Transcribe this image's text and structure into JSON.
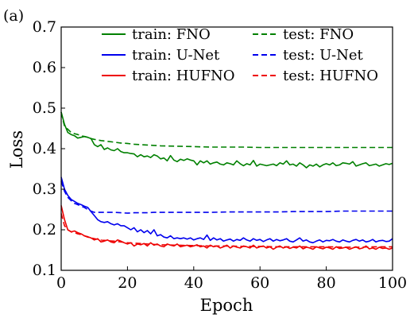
{
  "panel_label": "(a)",
  "chart_data": {
    "type": "line",
    "title": "",
    "xlabel": "Epoch",
    "ylabel": "Loss",
    "xlim": [
      0,
      100
    ],
    "ylim": [
      0.1,
      0.7
    ],
    "xticks": [
      0,
      20,
      40,
      60,
      80,
      100
    ],
    "yticks": [
      0.1,
      0.2,
      0.3,
      0.4,
      0.5,
      0.6,
      0.7
    ],
    "grid": false,
    "legend_position": "top",
    "legend_columns": 2,
    "series": [
      {
        "name": "train: FNO",
        "color": "#008000",
        "dash": "solid",
        "x": [
          0,
          1,
          2,
          3,
          4,
          5,
          6,
          7,
          8,
          9,
          10,
          11,
          12,
          13,
          14,
          15,
          16,
          17,
          18,
          19,
          20,
          21,
          22,
          23,
          24,
          25,
          26,
          27,
          28,
          29,
          30,
          31,
          32,
          33,
          34,
          35,
          36,
          37,
          38,
          39,
          40,
          41,
          42,
          43,
          44,
          45,
          46,
          47,
          48,
          49,
          50,
          51,
          52,
          53,
          54,
          55,
          56,
          57,
          58,
          59,
          60,
          61,
          62,
          63,
          64,
          65,
          66,
          67,
          68,
          69,
          70,
          71,
          72,
          73,
          74,
          75,
          76,
          77,
          78,
          79,
          80,
          81,
          82,
          83,
          84,
          85,
          86,
          87,
          88,
          89,
          90,
          91,
          92,
          93,
          94,
          95,
          96,
          97,
          98,
          99,
          100
        ],
        "values": [
          0.49,
          0.46,
          0.44,
          0.435,
          0.432,
          0.426,
          0.428,
          0.43,
          0.428,
          0.425,
          0.41,
          0.405,
          0.41,
          0.398,
          0.402,
          0.397,
          0.395,
          0.4,
          0.393,
          0.39,
          0.39,
          0.388,
          0.387,
          0.38,
          0.385,
          0.38,
          0.382,
          0.378,
          0.385,
          0.382,
          0.375,
          0.377,
          0.37,
          0.383,
          0.372,
          0.368,
          0.374,
          0.371,
          0.375,
          0.372,
          0.37,
          0.36,
          0.37,
          0.365,
          0.37,
          0.362,
          0.365,
          0.367,
          0.362,
          0.36,
          0.365,
          0.363,
          0.36,
          0.37,
          0.363,
          0.358,
          0.363,
          0.36,
          0.371,
          0.357,
          0.362,
          0.36,
          0.358,
          0.36,
          0.362,
          0.358,
          0.365,
          0.362,
          0.37,
          0.36,
          0.362,
          0.357,
          0.365,
          0.36,
          0.353,
          0.36,
          0.357,
          0.362,
          0.355,
          0.36,
          0.363,
          0.36,
          0.365,
          0.358,
          0.36,
          0.365,
          0.364,
          0.362,
          0.368,
          0.357,
          0.36,
          0.363,
          0.365,
          0.358,
          0.36,
          0.362,
          0.357,
          0.36,
          0.363,
          0.361,
          0.364
        ]
      },
      {
        "name": "train: U-Net",
        "color": "#0000ee",
        "dash": "solid",
        "x": [
          0,
          1,
          2,
          3,
          4,
          5,
          6,
          7,
          8,
          9,
          10,
          11,
          12,
          13,
          14,
          15,
          16,
          17,
          18,
          19,
          20,
          21,
          22,
          23,
          24,
          25,
          26,
          27,
          28,
          29,
          30,
          31,
          32,
          33,
          34,
          35,
          36,
          37,
          38,
          39,
          40,
          41,
          42,
          43,
          44,
          45,
          46,
          47,
          48,
          49,
          50,
          51,
          52,
          53,
          54,
          55,
          56,
          57,
          58,
          59,
          60,
          61,
          62,
          63,
          64,
          65,
          66,
          67,
          68,
          69,
          70,
          71,
          72,
          73,
          74,
          75,
          76,
          77,
          78,
          79,
          80,
          81,
          82,
          83,
          84,
          85,
          86,
          87,
          88,
          89,
          90,
          91,
          92,
          93,
          94,
          95,
          96,
          97,
          98,
          99,
          100
        ],
        "values": [
          0.33,
          0.3,
          0.285,
          0.275,
          0.27,
          0.265,
          0.262,
          0.258,
          0.255,
          0.245,
          0.235,
          0.225,
          0.22,
          0.218,
          0.22,
          0.215,
          0.212,
          0.215,
          0.21,
          0.21,
          0.205,
          0.2,
          0.205,
          0.195,
          0.2,
          0.193,
          0.198,
          0.19,
          0.2,
          0.185,
          0.188,
          0.182,
          0.18,
          0.185,
          0.178,
          0.18,
          0.178,
          0.18,
          0.177,
          0.18,
          0.175,
          0.178,
          0.18,
          0.176,
          0.187,
          0.174,
          0.18,
          0.175,
          0.178,
          0.172,
          0.175,
          0.177,
          0.172,
          0.176,
          0.174,
          0.18,
          0.175,
          0.172,
          0.178,
          0.174,
          0.176,
          0.171,
          0.175,
          0.178,
          0.172,
          0.176,
          0.173,
          0.175,
          0.178,
          0.172,
          0.17,
          0.175,
          0.18,
          0.172,
          0.175,
          0.17,
          0.168,
          0.172,
          0.175,
          0.17,
          0.174,
          0.173,
          0.176,
          0.172,
          0.17,
          0.175,
          0.172,
          0.17,
          0.174,
          0.176,
          0.172,
          0.175,
          0.17,
          0.172,
          0.176,
          0.17,
          0.173,
          0.174,
          0.171,
          0.172,
          0.178
        ]
      },
      {
        "name": "train: HUFNO",
        "color": "#ee0000",
        "dash": "solid",
        "x": [
          0,
          1,
          2,
          3,
          4,
          5,
          6,
          7,
          8,
          9,
          10,
          11,
          12,
          13,
          14,
          15,
          16,
          17,
          18,
          19,
          20,
          21,
          22,
          23,
          24,
          25,
          26,
          27,
          28,
          29,
          30,
          31,
          32,
          33,
          34,
          35,
          36,
          37,
          38,
          39,
          40,
          41,
          42,
          43,
          44,
          45,
          46,
          47,
          48,
          49,
          50,
          51,
          52,
          53,
          54,
          55,
          56,
          57,
          58,
          59,
          60,
          61,
          62,
          63,
          64,
          65,
          66,
          67,
          68,
          69,
          70,
          71,
          72,
          73,
          74,
          75,
          76,
          77,
          78,
          79,
          80,
          81,
          82,
          83,
          84,
          85,
          86,
          87,
          88,
          89,
          90,
          91,
          92,
          93,
          94,
          95,
          96,
          97,
          98,
          99,
          100
        ],
        "values": [
          0.26,
          0.225,
          0.2,
          0.195,
          0.197,
          0.193,
          0.19,
          0.185,
          0.183,
          0.18,
          0.175,
          0.178,
          0.17,
          0.172,
          0.175,
          0.17,
          0.168,
          0.175,
          0.172,
          0.168,
          0.165,
          0.168,
          0.16,
          0.165,
          0.163,
          0.166,
          0.16,
          0.168,
          0.162,
          0.165,
          0.16,
          0.158,
          0.165,
          0.162,
          0.16,
          0.165,
          0.158,
          0.16,
          0.162,
          0.158,
          0.16,
          0.163,
          0.158,
          0.16,
          0.155,
          0.162,
          0.158,
          0.16,
          0.155,
          0.158,
          0.162,
          0.155,
          0.16,
          0.157,
          0.155,
          0.16,
          0.158,
          0.155,
          0.162,
          0.155,
          0.158,
          0.16,
          0.155,
          0.158,
          0.152,
          0.157,
          0.16,
          0.155,
          0.158,
          0.154,
          0.157,
          0.155,
          0.16,
          0.153,
          0.157,
          0.155,
          0.152,
          0.158,
          0.155,
          0.153,
          0.157,
          0.155,
          0.152,
          0.158,
          0.154,
          0.155,
          0.157,
          0.152,
          0.155,
          0.158,
          0.153,
          0.155,
          0.16,
          0.153,
          0.155,
          0.152,
          0.157,
          0.154,
          0.155,
          0.152,
          0.155
        ]
      },
      {
        "name": "test: FNO",
        "color": "#008000",
        "dash": "dashed",
        "x": [
          0,
          1,
          2,
          3,
          4,
          5,
          6,
          7,
          8,
          9,
          10,
          12,
          14,
          16,
          18,
          20,
          22,
          24,
          26,
          28,
          30,
          35,
          40,
          45,
          50,
          55,
          60,
          65,
          70,
          75,
          80,
          85,
          90,
          95,
          100
        ],
        "values": [
          0.49,
          0.455,
          0.448,
          0.44,
          0.437,
          0.435,
          0.432,
          0.43,
          0.428,
          0.425,
          0.423,
          0.42,
          0.418,
          0.416,
          0.414,
          0.413,
          0.411,
          0.41,
          0.409,
          0.408,
          0.407,
          0.406,
          0.405,
          0.404,
          0.404,
          0.404,
          0.403,
          0.403,
          0.403,
          0.403,
          0.403,
          0.403,
          0.403,
          0.403,
          0.403
        ]
      },
      {
        "name": "test: U-Net",
        "color": "#0000ee",
        "dash": "dashed",
        "x": [
          0,
          1,
          2,
          3,
          4,
          5,
          6,
          7,
          8,
          9,
          10,
          12,
          14,
          16,
          18,
          20,
          22,
          24,
          26,
          28,
          30,
          35,
          40,
          45,
          50,
          55,
          60,
          65,
          70,
          75,
          80,
          85,
          90,
          95,
          100
        ],
        "values": [
          0.32,
          0.295,
          0.28,
          0.272,
          0.265,
          0.262,
          0.258,
          0.255,
          0.25,
          0.246,
          0.243,
          0.243,
          0.243,
          0.243,
          0.242,
          0.241,
          0.242,
          0.242,
          0.242,
          0.243,
          0.243,
          0.243,
          0.243,
          0.243,
          0.244,
          0.244,
          0.244,
          0.244,
          0.245,
          0.245,
          0.245,
          0.246,
          0.246,
          0.246,
          0.246
        ]
      },
      {
        "name": "test: HUFNO",
        "color": "#ee0000",
        "dash": "dashed",
        "x": [
          0,
          1,
          2,
          3,
          4,
          5,
          6,
          7,
          8,
          9,
          10,
          12,
          14,
          16,
          18,
          20,
          22,
          24,
          26,
          28,
          30,
          35,
          40,
          45,
          50,
          55,
          60,
          65,
          70,
          75,
          80,
          85,
          90,
          95,
          100
        ],
        "values": [
          0.24,
          0.21,
          0.2,
          0.195,
          0.193,
          0.19,
          0.188,
          0.185,
          0.182,
          0.18,
          0.178,
          0.175,
          0.173,
          0.172,
          0.17,
          0.168,
          0.167,
          0.166,
          0.165,
          0.164,
          0.163,
          0.162,
          0.161,
          0.16,
          0.16,
          0.159,
          0.159,
          0.158,
          0.158,
          0.158,
          0.158,
          0.157,
          0.157,
          0.158,
          0.158
        ]
      }
    ]
  }
}
